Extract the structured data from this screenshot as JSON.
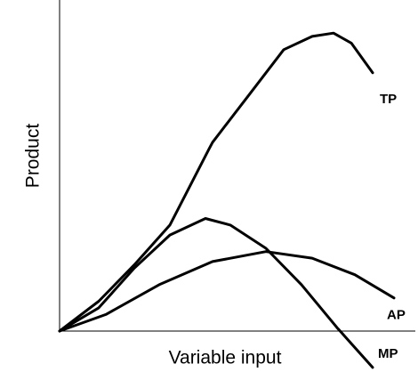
{
  "chart_data": {
    "type": "line",
    "xlabel": "Variable input",
    "ylabel": "Product",
    "xlim": [
      0,
      100
    ],
    "ylim": [
      -12,
      100
    ],
    "series": [
      {
        "name": "TP",
        "color": "#000000",
        "x": [
          0,
          11,
          21,
          31,
          42,
          43,
          53,
          63,
          71,
          77,
          82,
          88
        ],
        "values": [
          0,
          9,
          20,
          32,
          55,
          57,
          71,
          85,
          89,
          90,
          87,
          78
        ]
      },
      {
        "name": "AP",
        "color": "#000000",
        "x": [
          0,
          13,
          28,
          43,
          58,
          71,
          83,
          94
        ],
        "values": [
          0,
          5,
          14,
          21,
          24,
          22,
          17,
          10
        ]
      },
      {
        "name": "MP",
        "color": "#000000",
        "x": [
          0,
          11,
          21,
          31,
          41,
          48,
          58,
          68,
          78,
          88
        ],
        "values": [
          0,
          7,
          19,
          29,
          34,
          32,
          25,
          14,
          1,
          -11
        ]
      }
    ]
  }
}
